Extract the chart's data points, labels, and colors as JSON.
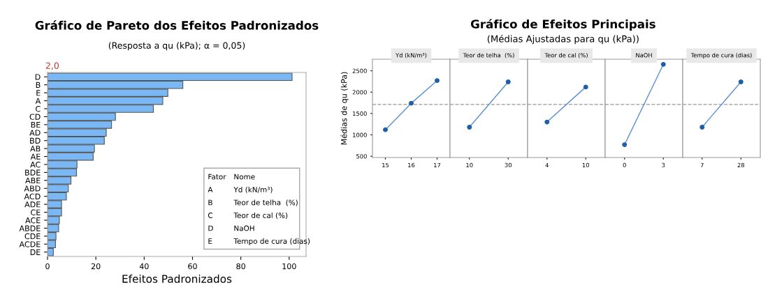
{
  "chart_data": [
    {
      "type": "bar",
      "orientation": "horizontal",
      "title": "Gráfico de Pareto dos Efeitos Padronizados",
      "subtitle": "(Resposta a qu (kPa); α = 0,05)",
      "xlabel": "Efeitos Padronizados",
      "categories": [
        "D",
        "B",
        "E",
        "A",
        "C",
        "CD",
        "BE",
        "AD",
        "BD",
        "AB",
        "AE",
        "AC",
        "BDE",
        "ABE",
        "ABD",
        "ACD",
        "ADE",
        "CE",
        "ACE",
        "ABDE",
        "CDE",
        "ACDE",
        "DE"
      ],
      "values": [
        101.2,
        56.0,
        49.8,
        47.7,
        43.8,
        28.1,
        26.5,
        24.3,
        23.5,
        19.4,
        18.9,
        12.2,
        12.0,
        9.7,
        8.6,
        7.8,
        5.8,
        5.8,
        4.9,
        4.6,
        3.5,
        3.3,
        2.4
      ],
      "color": "#7ab8f5",
      "xlim": [
        0,
        107
      ],
      "xticks": [
        0,
        20,
        40,
        60,
        80,
        100
      ],
      "ref_lines": [
        {
          "axis": "x",
          "value": 2.0,
          "label": "2,0",
          "color": "#c0392b"
        }
      ],
      "annotations": [
        "Fator",
        "Nome",
        "A",
        "Yd (kN/m³)",
        "B",
        "Teor de telha  (%)",
        "C",
        "Teor de cal (%)",
        "D",
        "NaOH",
        "E",
        "Tempo de cura (dias)"
      ],
      "grid": false
    },
    {
      "type": "line",
      "title": "Yd (kN/m³)",
      "ylabel": "Médias de qu (kPa)",
      "annotations": [
        "Gráfico de Efeitos Principais",
        "(Médias Ajustadas para qu (kPa))"
      ],
      "categories": [
        "15",
        "16",
        "17"
      ],
      "series": [
        {
          "color": "#1f5fa8",
          "values": [
            1120,
            1740,
            2270
          ]
        }
      ],
      "ylim": [
        470,
        2770
      ],
      "yticks": [
        500,
        1000,
        1500,
        2000,
        2500
      ],
      "ref_lines": [
        {
          "axis": "y",
          "value": 1712,
          "color": "#999999",
          "line_style": "dashed"
        }
      ],
      "marker": "circle",
      "grid": false
    },
    {
      "type": "line",
      "title": "Teor de telha  (%)",
      "categories": [
        "10",
        "30"
      ],
      "series": [
        {
          "color": "#1f5fa8",
          "values": [
            1180,
            2240
          ]
        }
      ],
      "ylim": [
        470,
        2770
      ],
      "yticks": [
        500,
        1000,
        1500,
        2000,
        2500
      ],
      "tick_labels": "x",
      "ref_lines": [
        {
          "axis": "y",
          "value": 1712,
          "color": "#999999",
          "line_style": "dashed"
        }
      ],
      "marker": "circle",
      "grid": false
    },
    {
      "type": "line",
      "title": "Teor de cal (%)",
      "categories": [
        "4",
        "10"
      ],
      "series": [
        {
          "color": "#1f5fa8",
          "values": [
            1300,
            2120
          ]
        }
      ],
      "ylim": [
        470,
        2770
      ],
      "yticks": [
        500,
        1000,
        1500,
        2000,
        2500
      ],
      "tick_labels": "x",
      "ref_lines": [
        {
          "axis": "y",
          "value": 1712,
          "color": "#999999",
          "line_style": "dashed"
        }
      ],
      "marker": "circle",
      "grid": false
    },
    {
      "type": "line",
      "title": "NaOH",
      "categories": [
        "0",
        "3"
      ],
      "series": [
        {
          "color": "#1f5fa8",
          "values": [
            770,
            2650
          ]
        }
      ],
      "ylim": [
        470,
        2770
      ],
      "yticks": [
        500,
        1000,
        1500,
        2000,
        2500
      ],
      "tick_labels": "x",
      "ref_lines": [
        {
          "axis": "y",
          "value": 1712,
          "color": "#999999",
          "line_style": "dashed"
        }
      ],
      "marker": "circle",
      "grid": false
    },
    {
      "type": "line",
      "title": "Tempo de cura (dias)",
      "categories": [
        "7",
        "28"
      ],
      "series": [
        {
          "color": "#1f5fa8",
          "values": [
            1180,
            2240
          ]
        }
      ],
      "ylim": [
        470,
        2770
      ],
      "yticks": [
        500,
        1000,
        1500,
        2000,
        2500
      ],
      "tick_labels": "x",
      "ref_lines": [
        {
          "axis": "y",
          "value": 1712,
          "color": "#999999",
          "line_style": "dashed"
        }
      ],
      "marker": "circle",
      "grid": false
    }
  ]
}
